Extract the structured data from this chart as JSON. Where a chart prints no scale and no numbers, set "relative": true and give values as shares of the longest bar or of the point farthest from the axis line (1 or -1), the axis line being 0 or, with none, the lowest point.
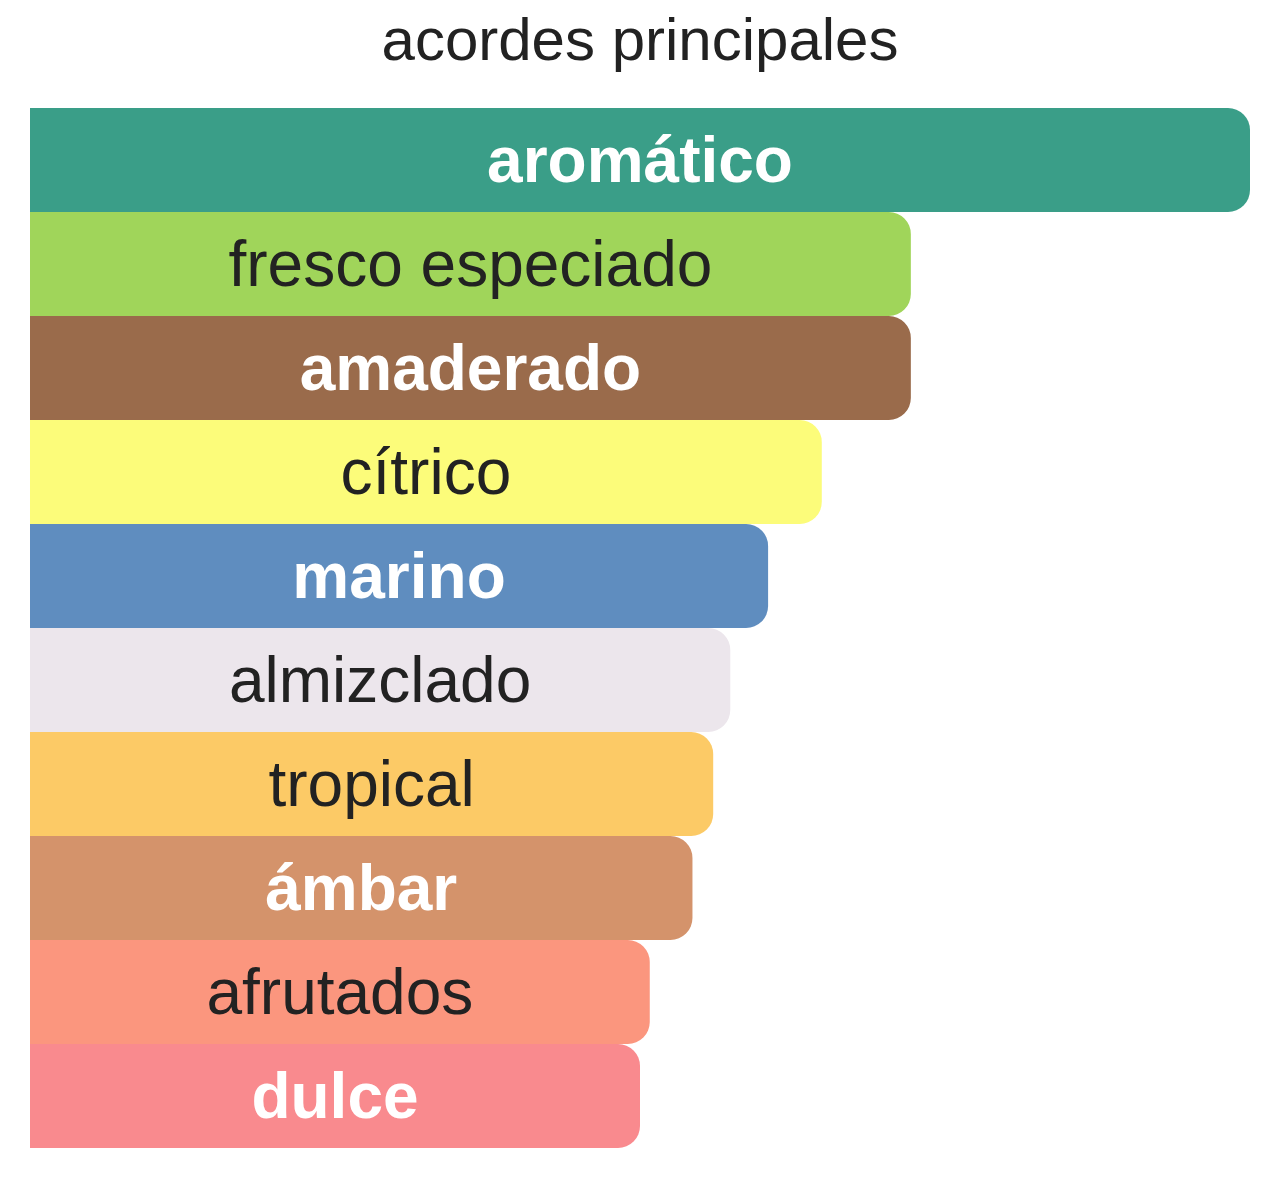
{
  "chart_data": {
    "type": "bar",
    "title": "acordes principales",
    "orientation": "horizontal",
    "relative": true,
    "tick_labels": false,
    "categories": [
      "aromático",
      "fresco especiado",
      "amaderado",
      "cítrico",
      "marino",
      "almizclado",
      "tropical",
      "ámbar",
      "afrutados",
      "dulce"
    ],
    "values": [
      1,
      0.722,
      0.722,
      0.649,
      0.605,
      0.574,
      0.56,
      0.543,
      0.508,
      0.5
    ],
    "colors": [
      "#3a9e88",
      "#a0d55a",
      "#9a6b4b",
      "#fcfc7a",
      "#5f8dbf",
      "#ece6ec",
      "#fcca66",
      "#d4936b",
      "#fb967e",
      "#f98a8e"
    ]
  }
}
